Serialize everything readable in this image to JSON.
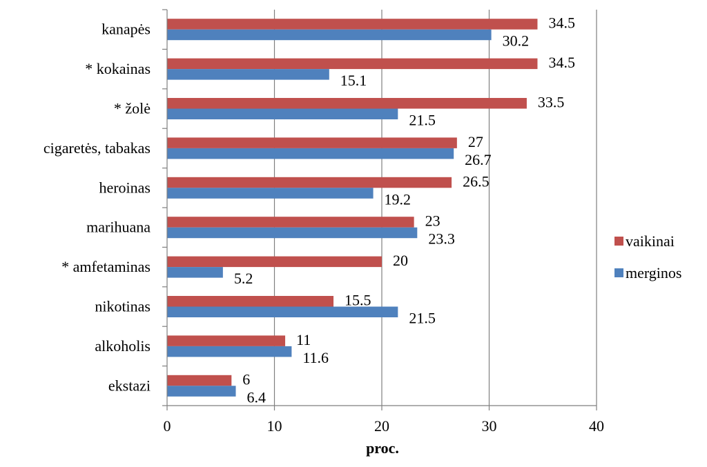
{
  "chart_data": {
    "type": "bar",
    "orientation": "horizontal",
    "categories": [
      "kanapės",
      "* kokainas",
      "* žolė",
      "cigaretės, tabakas",
      "heroinas",
      "marihuana",
      "* amfetaminas",
      "nikotinas",
      "alkoholis",
      "ekstazi"
    ],
    "series": [
      {
        "name": "vaikinai",
        "color": "#c0504d",
        "values": [
          34.5,
          34.5,
          33.5,
          27,
          26.5,
          23,
          20,
          15.5,
          11,
          6
        ]
      },
      {
        "name": "merginos",
        "color": "#4f81bd",
        "values": [
          30.2,
          15.1,
          21.5,
          26.7,
          19.2,
          23.3,
          5.2,
          21.5,
          11.6,
          6.4
        ]
      }
    ],
    "value_labels": {
      "vaikinai": [
        "34.5",
        "34.5",
        "33.5",
        "27",
        "26.5",
        "23",
        "20",
        "15.5",
        "11",
        "6"
      ],
      "merginos": [
        "30.2",
        "15.1",
        "21.5",
        "26.7",
        "19.2",
        "23.3",
        "5.2",
        "21.5",
        "11.6",
        "6.4"
      ]
    },
    "xlabel": "proc.",
    "xlim": [
      0,
      40
    ],
    "xticks": [
      "0",
      "10",
      "20",
      "30",
      "40"
    ],
    "grid": true,
    "legend": "right"
  }
}
